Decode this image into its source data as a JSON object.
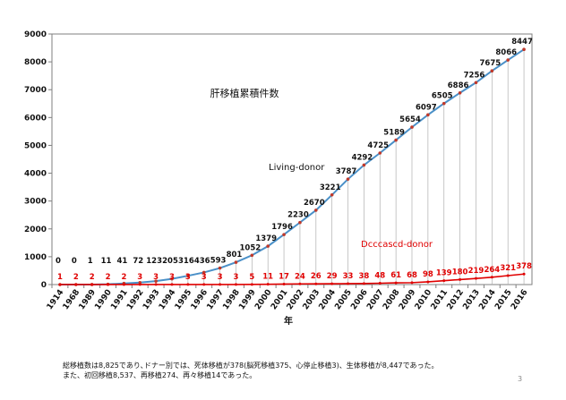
{
  "chart_data": {
    "type": "line",
    "title": "肝移植累積件数",
    "xlabel": "年",
    "ylabel": "",
    "ylim": [
      0,
      9000
    ],
    "yticks": [
      0,
      1000,
      2000,
      3000,
      4000,
      5000,
      6000,
      7000,
      8000,
      9000
    ],
    "grid": "vertical drop lines from each Living-donor point",
    "categories": [
      "1914",
      "1968",
      "1989",
      "1990",
      "1991",
      "1992",
      "1993",
      "1994",
      "1995",
      "1996",
      "1997",
      "1998",
      "1999",
      "2000",
      "2001",
      "2002",
      "2003",
      "2004",
      "2005",
      "2006",
      "2007",
      "2008",
      "2009",
      "2010",
      "2011",
      "2012",
      "2013",
      "2014",
      "2015",
      "2016"
    ],
    "series": [
      {
        "name": "Living-donor",
        "color": "#4a90c8",
        "values": [
          0,
          0,
          1,
          11,
          41,
          72,
          123,
          205,
          316,
          436,
          593,
          801,
          1052,
          1379,
          1796,
          2230,
          2670,
          3221,
          3787,
          4292,
          4725,
          5189,
          5654,
          6097,
          6505,
          6886,
          7256,
          7675,
          8066,
          8447
        ]
      },
      {
        "name": "Dcccascd-donor",
        "color": "#e00000",
        "values": [
          1,
          2,
          2,
          2,
          2,
          3,
          3,
          3,
          3,
          3,
          3,
          3,
          5,
          11,
          17,
          24,
          26,
          29,
          33,
          38,
          48,
          61,
          68,
          98,
          139,
          180,
          219,
          264,
          321,
          378
        ]
      }
    ]
  },
  "footnote": {
    "line1": "総移植数は8,825であり､ドナー別では、死体移植が378(脳死移植375、心停止移植3)、生体移植が8,447であった。",
    "line2": "また、初回移植8,537、再移植274、再々移植14であった。"
  },
  "page_number": "3"
}
